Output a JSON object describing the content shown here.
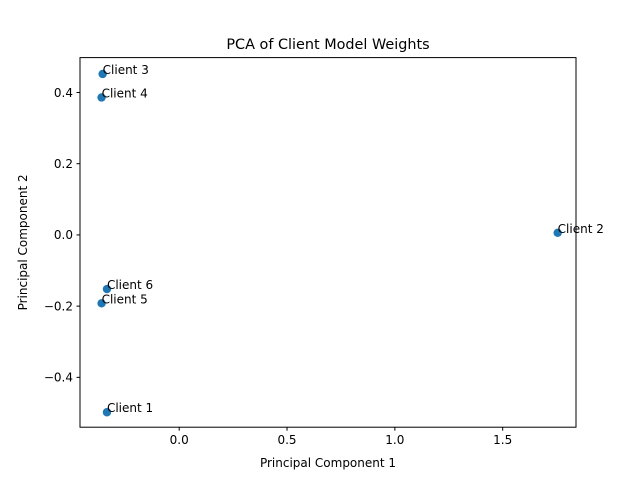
{
  "chart_data": {
    "type": "scatter",
    "title": "PCA of Client Model Weights",
    "xlabel": "Principal Component 1",
    "ylabel": "Principal Component 2",
    "xlim": [
      -0.46,
      1.84
    ],
    "ylim": [
      -0.54,
      0.498
    ],
    "xticks": [
      0.0,
      0.5,
      1.0,
      1.5
    ],
    "xtick_labels": [
      "0.0",
      "0.5",
      "1.0",
      "1.5"
    ],
    "yticks": [
      -0.4,
      -0.2,
      0.0,
      0.2,
      0.4
    ],
    "ytick_labels": [
      "−0.4",
      "−0.2",
      "0.0",
      "0.2",
      "0.4"
    ],
    "grid": false,
    "color": "#1f77b4",
    "points": [
      {
        "label": "Client 1",
        "x": -0.335,
        "y": -0.498
      },
      {
        "label": "Client 2",
        "x": 1.755,
        "y": 0.006
      },
      {
        "label": "Client 3",
        "x": -0.355,
        "y": 0.452
      },
      {
        "label": "Client 4",
        "x": -0.36,
        "y": 0.386
      },
      {
        "label": "Client 5",
        "x": -0.36,
        "y": -0.192
      },
      {
        "label": "Client 6",
        "x": -0.335,
        "y": -0.152
      }
    ]
  }
}
